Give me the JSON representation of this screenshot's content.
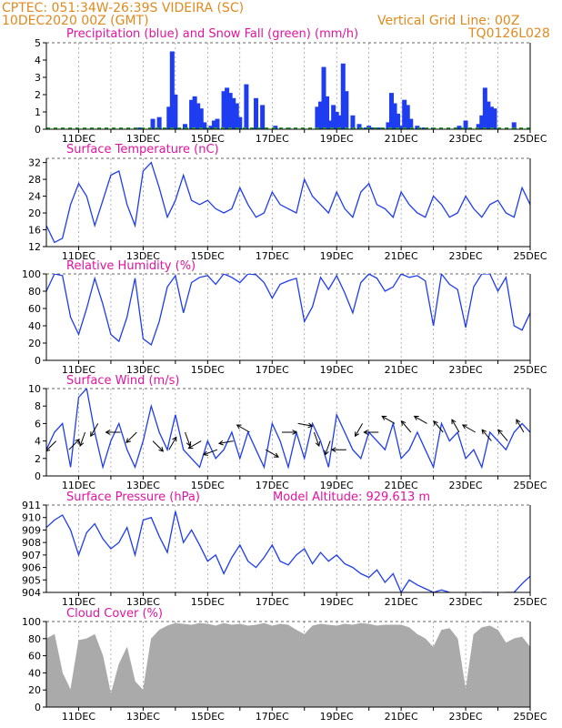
{
  "header": {
    "line1": "CPTEC:   051:34W-26:39S   VIDEIRA (SC)",
    "line2": "10DEC2020 00Z (GMT)",
    "grid_note": "Vertical Grid Line: 00Z",
    "code": "TQ0126L028"
  },
  "colors": {
    "orange": "#e08a1e",
    "magenta": "#e0149e",
    "blue": "#1e3cf0",
    "green": "#22aa22",
    "gray": "#aaaaaa",
    "grid": "#808080"
  },
  "x_axis": {
    "start_day": 10,
    "end_day": 25,
    "tick_labels": [
      "11DEC",
      "13DEC",
      "15DEC",
      "17DEC",
      "19DEC",
      "21DEC",
      "23DEC",
      "25DEC"
    ],
    "tick_days": [
      11,
      13,
      15,
      17,
      19,
      21,
      23,
      25
    ]
  },
  "chart_data": [
    {
      "id": "precip",
      "type": "bar",
      "title": "Precipitation (blue) and Snow Fall (green) (mm/h)",
      "ylim": [
        0,
        5
      ],
      "yticks": [
        0,
        1,
        2,
        3,
        4,
        5
      ],
      "series": [
        {
          "name": "Precipitation",
          "color": "blue",
          "x": [
            12.9,
            13.3,
            13.5,
            13.8,
            13.9,
            14.0,
            14.3,
            14.5,
            14.6,
            14.7,
            14.8,
            14.9,
            15.1,
            15.2,
            15.3,
            15.5,
            15.6,
            15.7,
            15.8,
            15.9,
            16.0,
            16.2,
            16.5,
            16.7,
            16.8,
            17.1,
            17.5,
            18.4,
            18.5,
            18.6,
            18.7,
            18.8,
            18.9,
            19.0,
            19.1,
            19.2,
            19.3,
            19.5,
            19.7,
            19.9,
            20.0,
            20.1,
            20.3,
            20.6,
            20.7,
            20.8,
            20.9,
            21.0,
            21.1,
            21.2,
            21.3,
            21.5,
            21.7,
            22.0,
            22.8,
            23.0,
            23.4,
            23.5,
            23.6,
            23.7,
            23.8,
            23.9,
            24.5
          ],
          "values": [
            0.1,
            0.6,
            0.7,
            1.3,
            4.5,
            2.0,
            0.3,
            1.7,
            1.9,
            1.5,
            1.2,
            0.4,
            0.2,
            0.5,
            0.6,
            2.2,
            2.4,
            2.1,
            1.8,
            1.5,
            0.7,
            2.6,
            1.8,
            1.4,
            0.1,
            0.2,
            0.1,
            1.3,
            1.6,
            3.6,
            1.9,
            0.5,
            1.4,
            1.0,
            0.8,
            3.8,
            2.2,
            0.8,
            0.3,
            0.1,
            0.2,
            0.1,
            0.1,
            0.4,
            2.1,
            1.5,
            0.9,
            0.2,
            1.7,
            1.4,
            0.6,
            0.2,
            0.1,
            0.1,
            0.2,
            0.5,
            0.3,
            0.8,
            2.4,
            1.6,
            1.3,
            1.2,
            0.4
          ]
        },
        {
          "name": "Snow Fall",
          "color": "green",
          "x": [
            10.0,
            25.0
          ],
          "values": [
            0,
            0
          ]
        }
      ]
    },
    {
      "id": "temp",
      "type": "line",
      "title": "Surface Temperature (nC)",
      "ylim": [
        12,
        33
      ],
      "yticks": [
        12,
        16,
        20,
        24,
        28,
        32
      ],
      "x": [
        10.0,
        10.25,
        10.5,
        10.75,
        11.0,
        11.25,
        11.5,
        11.75,
        12.0,
        12.25,
        12.5,
        12.75,
        13.0,
        13.25,
        13.5,
        13.75,
        14.0,
        14.25,
        14.5,
        14.75,
        15.0,
        15.25,
        15.5,
        15.75,
        16.0,
        16.25,
        16.5,
        16.75,
        17.0,
        17.25,
        17.5,
        17.75,
        18.0,
        18.25,
        18.5,
        18.75,
        19.0,
        19.25,
        19.5,
        19.75,
        20.0,
        20.25,
        20.5,
        20.75,
        21.0,
        21.25,
        21.5,
        21.75,
        22.0,
        22.25,
        22.5,
        22.75,
        23.0,
        23.25,
        23.5,
        23.75,
        24.0,
        24.25,
        24.5,
        24.75,
        25.0
      ],
      "series": [
        {
          "name": "Temperature",
          "color": "blue",
          "values": [
            17,
            13,
            14,
            22,
            27,
            24,
            17,
            23,
            29,
            30,
            22,
            17,
            30,
            32,
            26,
            19,
            23,
            29,
            23,
            22,
            23,
            21,
            20,
            21,
            26,
            22,
            19,
            20,
            25,
            22,
            21,
            20,
            28,
            24,
            22,
            20,
            25,
            21,
            19,
            25,
            27,
            22,
            21,
            19,
            25,
            22,
            20,
            19,
            24,
            22,
            19,
            20,
            24,
            21,
            19,
            22,
            23,
            20,
            19,
            26,
            22
          ]
        }
      ]
    },
    {
      "id": "rh",
      "type": "line",
      "title": "Relative Humidity (%)",
      "ylim": [
        0,
        100
      ],
      "yticks": [
        0,
        20,
        40,
        60,
        80,
        100
      ],
      "x": [
        10.0,
        10.25,
        10.5,
        10.75,
        11.0,
        11.25,
        11.5,
        11.75,
        12.0,
        12.25,
        12.5,
        12.75,
        13.0,
        13.25,
        13.5,
        13.75,
        14.0,
        14.25,
        14.5,
        14.75,
        15.0,
        15.25,
        15.5,
        15.75,
        16.0,
        16.25,
        16.5,
        16.75,
        17.0,
        17.25,
        17.5,
        17.75,
        18.0,
        18.25,
        18.5,
        18.75,
        19.0,
        19.25,
        19.5,
        19.75,
        20.0,
        20.25,
        20.5,
        20.75,
        21.0,
        21.25,
        21.5,
        21.75,
        22.0,
        22.25,
        22.5,
        22.75,
        23.0,
        23.25,
        23.5,
        23.75,
        24.0,
        24.25,
        24.5,
        24.75,
        25.0
      ],
      "series": [
        {
          "name": "Relative Humidity",
          "color": "blue",
          "values": [
            80,
            100,
            98,
            50,
            30,
            60,
            95,
            65,
            30,
            22,
            50,
            95,
            25,
            18,
            45,
            85,
            98,
            55,
            90,
            96,
            98,
            88,
            100,
            96,
            90,
            100,
            99,
            90,
            72,
            88,
            92,
            95,
            45,
            62,
            96,
            82,
            98,
            78,
            55,
            90,
            100,
            95,
            80,
            85,
            100,
            96,
            98,
            92,
            40,
            100,
            88,
            82,
            38,
            85,
            100,
            100,
            80,
            96,
            40,
            35,
            55
          ]
        }
      ]
    },
    {
      "id": "wind",
      "type": "line",
      "title": "Surface Wind (m/s)",
      "ylim": [
        0,
        10
      ],
      "yticks": [
        0,
        2,
        4,
        6,
        8,
        10
      ],
      "x": [
        10.0,
        10.25,
        10.5,
        10.75,
        11.0,
        11.25,
        11.5,
        11.75,
        12.0,
        12.25,
        12.5,
        12.75,
        13.0,
        13.25,
        13.5,
        13.75,
        14.0,
        14.25,
        14.5,
        14.75,
        15.0,
        15.25,
        15.5,
        15.75,
        16.0,
        16.25,
        16.5,
        16.75,
        17.0,
        17.25,
        17.5,
        17.75,
        18.0,
        18.25,
        18.5,
        18.75,
        19.0,
        19.25,
        19.5,
        19.75,
        20.0,
        20.25,
        20.5,
        20.75,
        21.0,
        21.25,
        21.5,
        21.75,
        22.0,
        22.25,
        22.5,
        22.75,
        23.0,
        23.25,
        23.5,
        23.75,
        24.0,
        24.25,
        24.5,
        24.75,
        25.0
      ],
      "series": [
        {
          "name": "Wind speed",
          "color": "blue",
          "values": [
            3,
            5,
            6,
            1,
            9,
            10,
            5,
            1,
            4,
            6,
            3,
            1,
            4,
            8,
            5,
            3,
            7,
            3,
            2,
            1,
            4,
            2,
            3,
            5,
            2,
            5,
            3,
            1,
            6,
            4,
            1,
            5,
            2,
            6,
            4,
            1,
            7,
            5,
            3,
            2,
            5,
            4,
            3,
            6,
            2,
            3,
            5,
            3,
            1,
            6,
            4,
            5,
            2,
            3,
            1,
            5,
            4,
            3,
            5,
            6,
            5
          ]
        }
      ],
      "arrows": {
        "x": [
          10.3,
          10.7,
          11.2,
          11.6,
          12.3,
          12.8,
          13.3,
          13.8,
          14.3,
          14.8,
          15.3,
          15.8,
          16.3,
          16.8,
          17.3,
          17.8,
          18.3,
          18.8,
          19.3,
          19.8,
          20.3,
          20.8,
          21.3,
          21.8,
          22.3,
          22.8,
          23.3,
          23.8,
          24.3,
          24.8
        ],
        "speeds": [
          4,
          3,
          5,
          6,
          5,
          5,
          4,
          3,
          5,
          4,
          3,
          4,
          5,
          3,
          5,
          6,
          5,
          4,
          3,
          6,
          5,
          6,
          5,
          6,
          5,
          5,
          5,
          4,
          4,
          5
        ],
        "directions_deg": [
          225,
          45,
          200,
          210,
          270,
          225,
          135,
          30,
          160,
          240,
          250,
          260,
          300,
          120,
          90,
          100,
          160,
          200,
          270,
          210,
          270,
          300,
          320,
          300,
          320,
          330,
          300,
          320,
          320,
          330
        ]
      }
    },
    {
      "id": "pressure",
      "type": "line",
      "title": "Surface Pressure (hPa)",
      "annotation": "Model Altitude: 929.613 m",
      "ylim": [
        904,
        911
      ],
      "yticks": [
        904,
        905,
        906,
        907,
        908,
        909,
        910,
        911
      ],
      "x": [
        10.0,
        10.25,
        10.5,
        10.75,
        11.0,
        11.25,
        11.5,
        11.75,
        12.0,
        12.25,
        12.5,
        12.75,
        13.0,
        13.25,
        13.5,
        13.75,
        14.0,
        14.25,
        14.5,
        14.75,
        15.0,
        15.25,
        15.5,
        15.75,
        16.0,
        16.25,
        16.5,
        16.75,
        17.0,
        17.25,
        17.5,
        17.75,
        18.0,
        18.25,
        18.5,
        18.75,
        19.0,
        19.25,
        19.5,
        19.75,
        20.0,
        20.25,
        20.5,
        20.75,
        21.0,
        21.25,
        21.5,
        21.75,
        22.0,
        22.25,
        22.5,
        22.75,
        23.0,
        23.25,
        23.5,
        23.75,
        24.0,
        24.25,
        24.5,
        24.75,
        25.0
      ],
      "series": [
        {
          "name": "Pressure",
          "color": "blue",
          "values": [
            909.2,
            909.8,
            910.2,
            909.0,
            907.0,
            908.8,
            909.5,
            908.3,
            907.5,
            908.0,
            909.2,
            907.0,
            909.8,
            910.0,
            908.5,
            907.2,
            910.5,
            908.0,
            909.0,
            907.8,
            906.5,
            907.0,
            905.5,
            906.8,
            907.8,
            906.5,
            906.0,
            906.8,
            907.8,
            906.5,
            906.2,
            907.0,
            907.5,
            906.3,
            907.2,
            906.5,
            907.0,
            906.3,
            906.0,
            905.5,
            905.2,
            905.8,
            904.8,
            905.5,
            904.0,
            905.0,
            904.6,
            904.3,
            904.0,
            904.2,
            904.0,
            903.8,
            904.0,
            903.8,
            904.0,
            904.0,
            903.9,
            904.0,
            904.0,
            904.7,
            905.3
          ]
        }
      ]
    },
    {
      "id": "cloud",
      "type": "area",
      "title": "Cloud Cover (%)",
      "ylim": [
        0,
        100
      ],
      "yticks": [
        0,
        20,
        40,
        60,
        80,
        100
      ],
      "x": [
        10.0,
        10.25,
        10.5,
        10.75,
        11.0,
        11.25,
        11.5,
        11.75,
        12.0,
        12.25,
        12.5,
        12.75,
        13.0,
        13.25,
        13.5,
        13.75,
        14.0,
        14.25,
        14.5,
        14.75,
        15.0,
        15.25,
        15.5,
        15.75,
        16.0,
        16.25,
        16.5,
        16.75,
        17.0,
        17.25,
        17.5,
        17.75,
        18.0,
        18.25,
        18.5,
        18.75,
        19.0,
        19.25,
        19.5,
        19.75,
        20.0,
        20.25,
        20.5,
        20.75,
        21.0,
        21.25,
        21.5,
        21.75,
        22.0,
        22.25,
        22.5,
        22.75,
        23.0,
        23.25,
        23.5,
        23.75,
        24.0,
        24.25,
        24.5,
        24.75,
        25.0
      ],
      "series": [
        {
          "name": "Cloud Cover",
          "color": "gray",
          "values": [
            80,
            85,
            40,
            20,
            78,
            80,
            85,
            60,
            15,
            50,
            70,
            30,
            20,
            80,
            90,
            95,
            98,
            97,
            96,
            98,
            97,
            95,
            98,
            96,
            97,
            95,
            96,
            98,
            95,
            97,
            96,
            90,
            85,
            95,
            97,
            96,
            95,
            97,
            96,
            98,
            97,
            95,
            96,
            96,
            96,
            93,
            85,
            80,
            70,
            90,
            92,
            80,
            20,
            85,
            93,
            95,
            90,
            75,
            80,
            82,
            70
          ]
        }
      ]
    }
  ]
}
